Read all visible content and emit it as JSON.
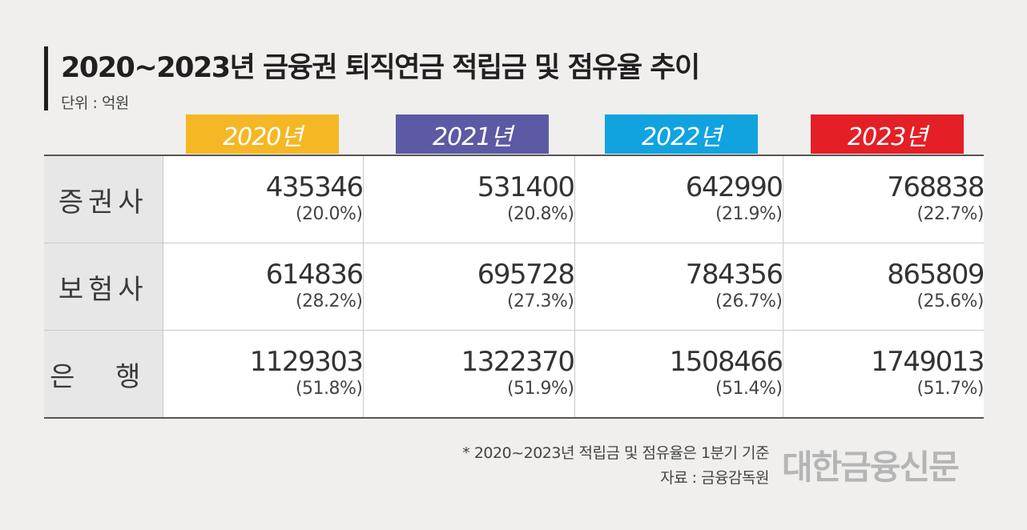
{
  "title": "2020~2023년 금융권 퇴직연금 적립금 및 점유율 추이",
  "unit": "단위 : 억원",
  "colors": {
    "y2020": "#f5b724",
    "y2021": "#5c5aa4",
    "y2022": "#11a3e0",
    "y2023": "#e41f26"
  },
  "chart_data": {
    "type": "table",
    "title": "2020~2023년 금융권 퇴직연금 적립금 및 점유율 추이",
    "unit": "단위 : 억원",
    "columns": [
      "2020년",
      "2021년",
      "2022년",
      "2023년"
    ],
    "rows": [
      {
        "label": "증권사",
        "values": [
          {
            "value": "435346",
            "share": "(20.0%)"
          },
          {
            "value": "531400",
            "share": "(20.8%)"
          },
          {
            "value": "642990",
            "share": "(21.9%)"
          },
          {
            "value": "768838",
            "share": "(22.7%)"
          }
        ]
      },
      {
        "label": "보험사",
        "values": [
          {
            "value": "614836",
            "share": "(28.2%)"
          },
          {
            "value": "695728",
            "share": "(27.3%)"
          },
          {
            "value": "784356",
            "share": "(26.7%)"
          },
          {
            "value": "865809",
            "share": "(25.6%)"
          }
        ]
      },
      {
        "label": "은 행",
        "values": [
          {
            "value": "1129303",
            "share": "(51.8%)"
          },
          {
            "value": "1322370",
            "share": "(51.9%)"
          },
          {
            "value": "1508466",
            "share": "(51.4%)"
          },
          {
            "value": "1749013",
            "share": "(51.7%)"
          }
        ]
      }
    ]
  },
  "footnote": {
    "line1": "* 2020~2023년 적립금 및 점유율은 1분기 기준",
    "line2": "자료 : 금융감독원"
  },
  "brand": "대한금융신문"
}
